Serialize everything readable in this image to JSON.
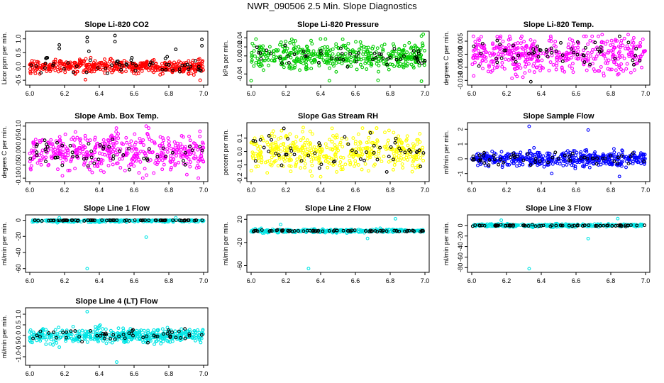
{
  "page": {
    "title": "NWR_090506  2.5 Min. Slope Diagnostics"
  },
  "chart_data": [
    {
      "type": "scatter",
      "title": "Slope Li-820 CO2",
      "xlabel": "",
      "ylabel": "Licor ppm per min.",
      "xlim": [
        6.0,
        7.0
      ],
      "ylim": [
        -0.6,
        1.2
      ],
      "xticks": [
        "6.0",
        "6.2",
        "6.4",
        "6.6",
        "6.8",
        "7.0"
      ],
      "yticks": [
        "-0.5",
        "0.0",
        "0.5",
        "1.0"
      ],
      "series": [
        {
          "name": "all",
          "color": "#ff0000",
          "count": 450,
          "center": 0.0,
          "spread": 0.12
        },
        {
          "name": "flagged",
          "color": "#000000",
          "count": 55,
          "center": 0.0,
          "spread": 0.15
        }
      ],
      "outliers": [
        {
          "x": 6.17,
          "y": 0.78,
          "color": "#000000"
        },
        {
          "x": 6.17,
          "y": 0.65,
          "color": "#000000"
        },
        {
          "x": 6.33,
          "y": 1.05,
          "color": "#000000"
        },
        {
          "x": 6.33,
          "y": 0.9,
          "color": "#000000"
        },
        {
          "x": 6.49,
          "y": 1.12,
          "color": "#000000"
        },
        {
          "x": 6.49,
          "y": 0.9,
          "color": "#000000"
        },
        {
          "x": 6.84,
          "y": 0.62,
          "color": "#000000"
        },
        {
          "x": 6.99,
          "y": 0.98,
          "color": "#000000"
        },
        {
          "x": 6.99,
          "y": 0.75,
          "color": "#000000"
        },
        {
          "x": 6.34,
          "y": 0.55,
          "color": "#000000"
        },
        {
          "x": 6.32,
          "y": -0.48,
          "color": "#ff0000"
        },
        {
          "x": 6.98,
          "y": -0.5,
          "color": "#ff0000"
        }
      ]
    },
    {
      "type": "scatter",
      "title": "Slope Li-820 Pressure",
      "xlabel": "",
      "ylabel": "kPa per min.",
      "xlim": [
        6.0,
        7.0
      ],
      "ylim": [
        -0.06,
        0.05
      ],
      "xticks": [
        "6.0",
        "6.2",
        "6.4",
        "6.6",
        "6.8",
        "7.0"
      ],
      "yticks": [
        "-0.04",
        "0.00",
        "0.02",
        "0.04"
      ],
      "series": [
        {
          "name": "all",
          "color": "#00cc00",
          "count": 450,
          "center": 0.0,
          "spread": 0.015
        },
        {
          "name": "flagged",
          "color": "#000000",
          "count": 55,
          "center": 0.0,
          "spread": 0.012
        }
      ],
      "outliers": [
        {
          "x": 6.99,
          "y": 0.048,
          "color": "#00cc00"
        },
        {
          "x": 6.98,
          "y": 0.044,
          "color": "#00cc00"
        },
        {
          "x": 6.45,
          "y": -0.055,
          "color": "#00cc00"
        },
        {
          "x": 6.0,
          "y": -0.055,
          "color": "#00cc00"
        },
        {
          "x": 6.73,
          "y": -0.054,
          "color": "#00cc00"
        },
        {
          "x": 6.98,
          "y": -0.056,
          "color": "#00cc00"
        }
      ]
    },
    {
      "type": "scatter",
      "title": "Slope Li-820 Temp.",
      "xlabel": "",
      "ylabel": "degrees C per min.",
      "xlim": [
        6.0,
        7.0
      ],
      "ylim": [
        -0.011,
        0.008
      ],
      "xticks": [
        "6.0",
        "6.2",
        "6.4",
        "6.6",
        "6.8",
        "7.0"
      ],
      "yticks": [
        "-0.010",
        "-0.005",
        "0.000",
        "0.005"
      ],
      "series": [
        {
          "name": "all",
          "color": "#ff00ff",
          "count": 450,
          "center": 0.0,
          "spread": 0.0035
        },
        {
          "name": "flagged",
          "color": "#000000",
          "count": 55,
          "center": 0.0,
          "spread": 0.003
        }
      ],
      "outliers": [
        {
          "x": 6.34,
          "y": -0.0105,
          "color": "#000000"
        },
        {
          "x": 6.75,
          "y": 0.0075,
          "color": "#ff00ff"
        },
        {
          "x": 6.9,
          "y": 0.0075,
          "color": "#ff00ff"
        }
      ]
    },
    {
      "type": "scatter",
      "title": "Slope Amb. Box Temp.",
      "xlabel": "",
      "ylabel": "degees C per min.",
      "xlim": [
        6.0,
        7.0
      ],
      "ylim": [
        -0.105,
        0.105
      ],
      "xticks": [
        "6.0",
        "6.2",
        "6.4",
        "6.6",
        "6.8",
        "7.0"
      ],
      "yticks": [
        "-0.10",
        "-0.05",
        "0.00",
        "0.05",
        "0.10"
      ],
      "series": [
        {
          "name": "all",
          "color": "#ff00ff",
          "count": 450,
          "center": 0.0,
          "spread": 0.035
        },
        {
          "name": "flagged",
          "color": "#000000",
          "count": 55,
          "center": 0.0,
          "spread": 0.03
        }
      ],
      "outliers": [
        {
          "x": 6.67,
          "y": 0.1,
          "color": "#ff00ff"
        },
        {
          "x": 6.65,
          "y": -0.1,
          "color": "#ff00ff"
        },
        {
          "x": 6.97,
          "y": -0.1,
          "color": "#ff00ff"
        }
      ]
    },
    {
      "type": "scatter",
      "title": "Slope Gas Stream RH",
      "xlabel": "",
      "ylabel": "percent per min.",
      "xlim": [
        6.0,
        7.0
      ],
      "ylim": [
        -0.21,
        0.2
      ],
      "xticks": [
        "6.0",
        "6.2",
        "6.4",
        "6.6",
        "6.8",
        "7.0"
      ],
      "yticks": [
        "-0.2",
        "-0.1",
        "0.0",
        "0.1"
      ],
      "series": [
        {
          "name": "all",
          "color": "#ffff00",
          "count": 450,
          "center": 0.0,
          "spread": 0.07
        },
        {
          "name": "flagged",
          "color": "#000000",
          "count": 55,
          "center": 0.0,
          "spread": 0.07
        }
      ],
      "outliers": [
        {
          "x": 6.3,
          "y": 0.18,
          "color": "#ffff00"
        },
        {
          "x": 6.4,
          "y": -0.19,
          "color": "#ffff00"
        }
      ]
    },
    {
      "type": "scatter",
      "title": "Slope Sample Flow",
      "xlabel": "",
      "ylabel": "ml/min per min.",
      "xlim": [
        6.0,
        7.0
      ],
      "ylim": [
        -1.4,
        2.3
      ],
      "xticks": [
        "6.0",
        "6.2",
        "6.4",
        "6.6",
        "6.8",
        "7.0"
      ],
      "yticks": [
        "-1",
        "0",
        "1",
        "2"
      ],
      "series": [
        {
          "name": "all",
          "color": "#0000ff",
          "count": 450,
          "center": 0.0,
          "spread": 0.25
        },
        {
          "name": "flagged",
          "color": "#000000",
          "count": 55,
          "center": 0.0,
          "spread": 0.25
        }
      ],
      "outliers": [
        {
          "x": 6.33,
          "y": 2.2,
          "color": "#0000ff"
        },
        {
          "x": 6.67,
          "y": 1.95,
          "color": "#0000ff"
        },
        {
          "x": 6.66,
          "y": 0.6,
          "color": "#0000ff"
        },
        {
          "x": 6.85,
          "y": -1.2,
          "color": "#0000ff"
        },
        {
          "x": 6.46,
          "y": -1.0,
          "color": "#0000ff"
        }
      ]
    },
    {
      "type": "scatter",
      "title": "Slope Line 1 Flow",
      "xlabel": "",
      "ylabel": "ml/min per min.",
      "xlim": [
        6.0,
        7.0
      ],
      "ylim": [
        -62,
        4
      ],
      "xticks": [
        "6.0",
        "6.2",
        "6.4",
        "6.6",
        "6.8",
        "7.0"
      ],
      "yticks": [
        "-60",
        "-40",
        "-20",
        "0"
      ],
      "series": [
        {
          "name": "all",
          "color": "#00e5e5",
          "count": 300,
          "center": -0.5,
          "spread": 1.0
        },
        {
          "name": "flagged",
          "color": "#000000",
          "count": 70,
          "center": 0.0,
          "spread": 0.4
        }
      ],
      "outliers": [
        {
          "x": 6.33,
          "y": -60,
          "color": "#00e5e5"
        },
        {
          "x": 6.67,
          "y": -21,
          "color": "#00e5e5"
        },
        {
          "x": 6.17,
          "y": 3,
          "color": "#00e5e5"
        },
        {
          "x": 6.84,
          "y": 3,
          "color": "#00e5e5"
        }
      ]
    },
    {
      "type": "scatter",
      "title": "Slope Line 2 Flow",
      "xlabel": "",
      "ylabel": "ml/min per min.",
      "xlim": [
        6.0,
        7.0
      ],
      "ylim": [
        -68,
        24
      ],
      "xticks": [
        "6.0",
        "6.2",
        "6.4",
        "6.6",
        "6.8",
        "7.0"
      ],
      "yticks": [
        "-60",
        "-20",
        "20"
      ],
      "series": [
        {
          "name": "all",
          "color": "#00e5e5",
          "count": 300,
          "center": 0.0,
          "spread": 1.5
        },
        {
          "name": "flagged",
          "color": "#000000",
          "count": 70,
          "center": 0.0,
          "spread": 0.8
        }
      ],
      "outliers": [
        {
          "x": 6.33,
          "y": -65,
          "color": "#00e5e5"
        },
        {
          "x": 6.67,
          "y": -13,
          "color": "#00e5e5"
        },
        {
          "x": 6.17,
          "y": 11,
          "color": "#00e5e5"
        },
        {
          "x": 6.83,
          "y": 21,
          "color": "#00e5e5"
        }
      ]
    },
    {
      "type": "scatter",
      "title": "Slope Line 3 Flow",
      "xlabel": "",
      "ylabel": "ml/min per min.",
      "xlim": [
        6.0,
        7.0
      ],
      "ylim": [
        -85,
        16
      ],
      "xticks": [
        "6.0",
        "6.2",
        "6.4",
        "6.6",
        "6.8",
        "7.0"
      ],
      "yticks": [
        "-80",
        "-60",
        "-40",
        "-20",
        "0"
      ],
      "series": [
        {
          "name": "all",
          "color": "#00e5e5",
          "count": 300,
          "center": 0.0,
          "spread": 1.5
        },
        {
          "name": "flagged",
          "color": "#000000",
          "count": 70,
          "center": 0.0,
          "spread": 0.8
        }
      ],
      "outliers": [
        {
          "x": 6.33,
          "y": -82,
          "color": "#00e5e5"
        },
        {
          "x": 6.67,
          "y": -25,
          "color": "#00e5e5"
        },
        {
          "x": 6.17,
          "y": 10,
          "color": "#00e5e5"
        },
        {
          "x": 6.84,
          "y": 13,
          "color": "#00e5e5"
        }
      ]
    },
    {
      "type": "scatter",
      "title": "Slope Line 4 (LT) Flow",
      "xlabel": "",
      "ylabel": "ml/min per min.",
      "xlim": [
        6.0,
        7.0
      ],
      "ylim": [
        -1.3,
        1.2
      ],
      "xticks": [
        "6.0",
        "6.2",
        "6.4",
        "6.6",
        "6.8",
        "7.0"
      ],
      "yticks": [
        "-1.0",
        "-0.5",
        "0.0",
        "0.5",
        "1.0"
      ],
      "series": [
        {
          "name": "all",
          "color": "#00e5e5",
          "count": 450,
          "center": 0.0,
          "spread": 0.17
        },
        {
          "name": "flagged",
          "color": "#000000",
          "count": 55,
          "center": 0.0,
          "spread": 0.15
        }
      ],
      "outliers": [
        {
          "x": 6.33,
          "y": 1.12,
          "color": "#00e5e5"
        },
        {
          "x": 6.5,
          "y": -1.25,
          "color": "#00e5e5"
        },
        {
          "x": 6.17,
          "y": -0.55,
          "color": "#00e5e5"
        }
      ]
    }
  ]
}
